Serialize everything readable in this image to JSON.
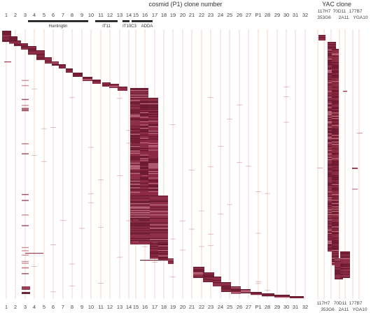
{
  "chart_data": {
    "type": "heatmap",
    "title": "cosmid (P1) clone number",
    "yac_title": "YAC clone",
    "cosmid_labels": [
      "1",
      "2",
      "3",
      "4",
      "5",
      "6",
      "7",
      "8",
      "9",
      "10",
      "11",
      "12",
      "13",
      "14",
      "15",
      "16",
      "17",
      "18",
      "19",
      "20",
      "21",
      "22",
      "23",
      "24",
      "25",
      "26",
      "27",
      "P1",
      "28",
      "29",
      "30",
      "31",
      "32"
    ],
    "gene_labels": [
      "Huntingtin",
      "IT11",
      "IT10C3",
      "ADDA"
    ],
    "yac_top_upper": [
      "117H7",
      "70D11",
      "177B7"
    ],
    "yac_top_lower": [
      "353G6",
      "2A11",
      "YGA10"
    ],
    "yac_bottom_upper": [
      "117H7",
      "70D11",
      "177B7"
    ],
    "yac_bottom_lower": [
      "353G6",
      "2A11",
      "YGA10"
    ],
    "colors": {
      "signal_dark": "#5a0f24",
      "signal_mid": "#8c2b44",
      "signal_light": "#c87b8c",
      "grid": "#e9b7a8"
    }
  }
}
